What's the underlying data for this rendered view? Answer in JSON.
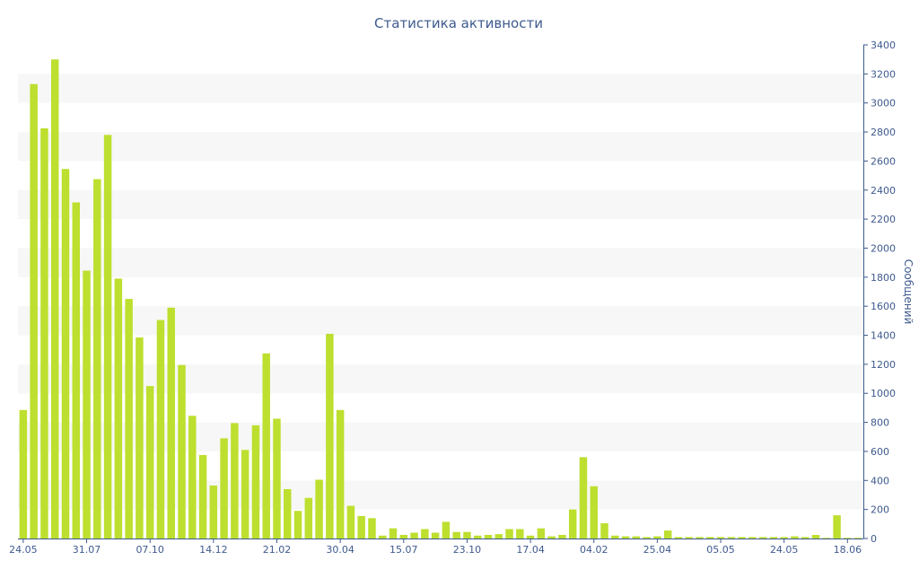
{
  "chart_data": {
    "type": "bar",
    "title": "Статистика активности",
    "xlabel": "",
    "ylabel": "Сообщений",
    "ylim": [
      0,
      3400
    ],
    "yticks": [
      0,
      200,
      400,
      600,
      800,
      1000,
      1200,
      1400,
      1600,
      1800,
      2000,
      2200,
      2400,
      2600,
      2800,
      3000,
      3200,
      3400
    ],
    "y_axis_side": "right",
    "grid": "alternating horizontal bands",
    "xtick_labels": [
      {
        "label": "24.05",
        "index": 0
      },
      {
        "label": "31.07",
        "index": 6
      },
      {
        "label": "07.10",
        "index": 12
      },
      {
        "label": "14.12",
        "index": 18
      },
      {
        "label": "21.02",
        "index": 24
      },
      {
        "label": "30.04",
        "index": 30
      },
      {
        "label": "15.07",
        "index": 36
      },
      {
        "label": "23.10",
        "index": 42
      },
      {
        "label": "17.04",
        "index": 48
      },
      {
        "label": "04.02",
        "index": 54
      },
      {
        "label": "25.04",
        "index": 60
      },
      {
        "label": "05.05",
        "index": 66
      },
      {
        "label": "24.05",
        "index": 72
      },
      {
        "label": "18.06",
        "index": 78
      }
    ],
    "values": [
      885,
      3130,
      2825,
      3300,
      2545,
      2315,
      1845,
      2475,
      2780,
      1790,
      1650,
      1385,
      1050,
      1505,
      1590,
      1195,
      845,
      575,
      365,
      690,
      795,
      610,
      780,
      1275,
      825,
      340,
      190,
      280,
      405,
      1410,
      885,
      225,
      155,
      140,
      20,
      70,
      25,
      40,
      65,
      40,
      115,
      45,
      45,
      20,
      25,
      30,
      65,
      65,
      20,
      70,
      15,
      25,
      200,
      560,
      360,
      105,
      20,
      15,
      15,
      10,
      15,
      55,
      10,
      10,
      10,
      10,
      10,
      10,
      10,
      10,
      10,
      10,
      10,
      15,
      10,
      25,
      5,
      160,
      5,
      5
    ],
    "bar_color": "#bddf2f",
    "band_color": "#f7f7f7",
    "text_color": "#3e5a8e",
    "axis_color": "#3e5a8e"
  }
}
